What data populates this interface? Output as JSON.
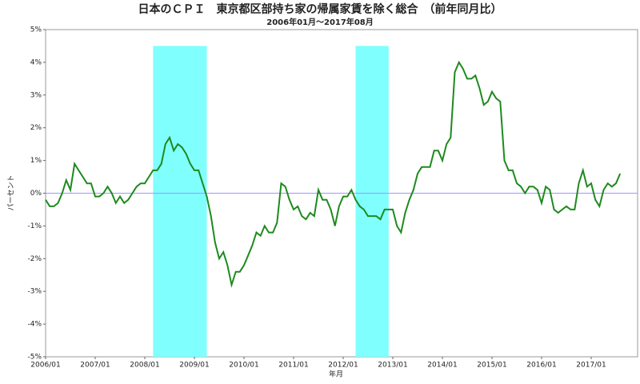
{
  "chart_data": {
    "type": "line",
    "title": "日本のＣＰＩ　東京都区部持ち家の帰属家賃を除く総合　（前年同月比）",
    "subtitle": "2006年01月～2017年08月",
    "x_label": "年月",
    "y_label": "パーセント",
    "categories": [
      "2006/01",
      null,
      null,
      null,
      null,
      null,
      null,
      null,
      null,
      null,
      null,
      null,
      "2007/01",
      null,
      null,
      null,
      null,
      null,
      null,
      null,
      null,
      null,
      null,
      null,
      "2008/01",
      null,
      null,
      null,
      null,
      null,
      null,
      null,
      null,
      null,
      null,
      null,
      "2009/01",
      null,
      null,
      null,
      null,
      null,
      null,
      null,
      null,
      null,
      null,
      null,
      "2010/01",
      null,
      null,
      null,
      null,
      null,
      null,
      null,
      null,
      null,
      null,
      null,
      "2011/01",
      null,
      null,
      null,
      null,
      null,
      null,
      null,
      null,
      null,
      null,
      null,
      "2012/01",
      null,
      null,
      null,
      null,
      null,
      null,
      null,
      null,
      null,
      null,
      null,
      "2013/01",
      null,
      null,
      null,
      null,
      null,
      null,
      null,
      null,
      null,
      null,
      null,
      "2014/01",
      null,
      null,
      null,
      null,
      null,
      null,
      null,
      null,
      null,
      null,
      null,
      "2015/01",
      null,
      null,
      null,
      null,
      null,
      null,
      null,
      null,
      null,
      null,
      null,
      "2016/01",
      null,
      null,
      null,
      null,
      null,
      null,
      null,
      null,
      null,
      null,
      null,
      "2017/01",
      null,
      null,
      null,
      null,
      null,
      null,
      null
    ],
    "series": [
      {
        "color": "#1e8a1e",
        "values": [
          -0.2,
          -0.4,
          -0.4,
          -0.3,
          0.0,
          0.4,
          0.1,
          0.9,
          0.7,
          0.5,
          0.3,
          0.3,
          -0.1,
          -0.1,
          0.0,
          0.2,
          0.0,
          -0.3,
          -0.1,
          -0.3,
          -0.2,
          0.0,
          0.2,
          0.3,
          0.3,
          0.5,
          0.7,
          0.7,
          0.9,
          1.5,
          1.7,
          1.3,
          1.5,
          1.4,
          1.2,
          0.9,
          0.7,
          0.7,
          0.3,
          -0.1,
          -0.7,
          -1.5,
          -2.0,
          -1.8,
          -2.2,
          -2.8,
          -2.4,
          -2.4,
          -2.2,
          -1.9,
          -1.6,
          -1.2,
          -1.3,
          -1.0,
          -1.2,
          -1.2,
          -0.9,
          0.3,
          0.2,
          -0.2,
          -0.5,
          -0.4,
          -0.7,
          -0.8,
          -0.6,
          -0.7,
          0.1,
          -0.2,
          -0.2,
          -0.5,
          -1.0,
          -0.4,
          -0.1,
          -0.1,
          0.1,
          -0.2,
          -0.4,
          -0.5,
          -0.7,
          -0.7,
          -0.7,
          -0.8,
          -0.5,
          -0.5,
          -0.5,
          -1.0,
          -1.2,
          -0.6,
          -0.2,
          0.1,
          0.6,
          0.8,
          0.8,
          0.8,
          1.3,
          1.3,
          1.0,
          1.5,
          1.7,
          3.7,
          4.0,
          3.8,
          3.5,
          3.5,
          3.6,
          3.2,
          2.7,
          2.8,
          3.1,
          2.9,
          2.8,
          1.0,
          0.7,
          0.7,
          0.3,
          0.2,
          0.0,
          0.2,
          0.2,
          0.1,
          -0.3,
          0.2,
          0.1,
          -0.5,
          -0.6,
          -0.5,
          -0.4,
          -0.5,
          -0.5,
          0.3,
          0.7,
          0.2,
          0.3,
          -0.2,
          -0.4,
          0.1,
          0.3,
          0.2,
          0.3,
          0.6
        ]
      }
    ],
    "ylim": [
      -5,
      5
    ],
    "yticks": [
      {
        "value": 5,
        "label": "5%"
      },
      {
        "value": 4,
        "label": "4%"
      },
      {
        "value": 3,
        "label": "3%"
      },
      {
        "value": 2,
        "label": "2%"
      },
      {
        "value": 1,
        "label": "1%"
      },
      {
        "value": 0,
        "label": "0%"
      },
      {
        "value": -1,
        "label": "-1%"
      },
      {
        "value": -2,
        "label": "-2%"
      },
      {
        "value": -3,
        "label": "-3%"
      },
      {
        "value": -4,
        "label": "-4%"
      },
      {
        "value": -5,
        "label": "-5%"
      }
    ],
    "zero_line": 0,
    "zero_line_color": "#9a9aff",
    "shaded": [
      {
        "from": 26,
        "to": 39
      },
      {
        "from": 75,
        "to": 83
      }
    ],
    "shade_color": "#80ffff",
    "shade_top": 4.5
  }
}
